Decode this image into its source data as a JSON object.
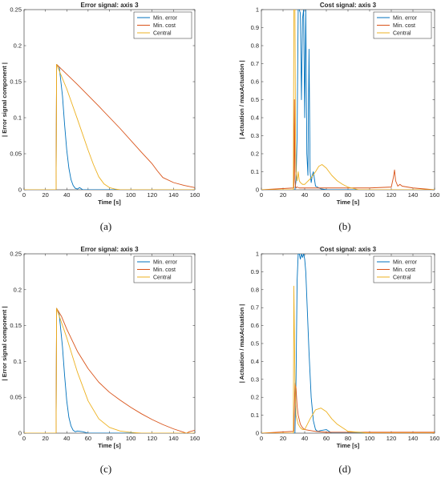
{
  "colors": {
    "min_error": "#0072BD",
    "min_cost": "#D95319",
    "central": "#EDB120"
  },
  "chart_data": [
    {
      "type": "line",
      "panel": "(a)",
      "title": "Error signal: axis 3",
      "xlabel": "Time [s]",
      "ylabel": "| Error signal component |",
      "xlim": [
        0,
        160
      ],
      "ylim": [
        0,
        0.25
      ],
      "xticks": [
        "0",
        "20",
        "40",
        "60",
        "80",
        "100",
        "120",
        "140",
        "160"
      ],
      "yticks": [
        "0",
        "0.05",
        "0.1",
        "0.15",
        "0.2",
        "0.25"
      ],
      "legend_position": "top-right",
      "series": [
        {
          "name": "Min. error",
          "x": [
            0,
            30,
            30.5,
            33,
            36,
            38,
            40,
            42,
            44,
            46,
            48,
            50,
            52,
            55,
            60,
            160
          ],
          "y": [
            0,
            0,
            0.174,
            0.17,
            0.13,
            0.09,
            0.055,
            0.03,
            0.014,
            0.006,
            0.002,
            0.001,
            0.003,
            0,
            0,
            0
          ]
        },
        {
          "name": "Min. cost",
          "x": [
            0,
            30,
            30.5,
            50,
            70,
            90,
            110,
            120,
            125,
            130,
            140,
            150,
            160
          ],
          "y": [
            0,
            0,
            0.174,
            0.146,
            0.116,
            0.085,
            0.052,
            0.036,
            0.026,
            0.017,
            0.01,
            0.006,
            0.003
          ]
        },
        {
          "name": "Central",
          "x": [
            0,
            30,
            30.5,
            40,
            50,
            60,
            65,
            70,
            75,
            80,
            85,
            90,
            160
          ],
          "y": [
            0,
            0,
            0.174,
            0.14,
            0.098,
            0.055,
            0.035,
            0.018,
            0.008,
            0.003,
            0.001,
            0,
            0
          ]
        }
      ]
    },
    {
      "type": "line",
      "panel": "(b)",
      "title": "Cost signal: axis 3",
      "xlabel": "Time [s]",
      "ylabel": "| Actuation / maxActuation |",
      "xlim": [
        0,
        160
      ],
      "ylim": [
        0,
        1
      ],
      "xticks": [
        "0",
        "20",
        "40",
        "60",
        "80",
        "100",
        "120",
        "140",
        "160"
      ],
      "yticks": [
        "0",
        "0.1",
        "0.2",
        "0.3",
        "0.4",
        "0.5",
        "0.6",
        "0.7",
        "0.8",
        "0.9",
        "1"
      ],
      "legend_position": "top-right",
      "series": [
        {
          "name": "Min. error",
          "x": [
            0,
            31,
            32,
            33,
            34,
            35,
            36,
            37,
            38,
            39,
            40,
            41,
            42,
            43,
            44,
            45,
            46,
            47,
            48,
            50,
            55,
            60,
            160
          ],
          "y": [
            0,
            0,
            0.05,
            0.3,
            1,
            1,
            0.98,
            0.5,
            0.95,
            1,
            0.4,
            1,
            0.2,
            0.08,
            0.78,
            0.1,
            0.04,
            0.08,
            0.1,
            0.02,
            0.005,
            0,
            0
          ]
        },
        {
          "name": "Min. cost",
          "x": [
            0,
            30,
            30.5,
            31,
            31.5,
            32,
            33,
            35,
            40,
            60,
            100,
            120,
            122,
            123,
            124,
            126,
            128,
            130,
            135,
            140,
            150,
            160
          ],
          "y": [
            0,
            0.01,
            0.5,
            0.06,
            0.02,
            0.01,
            0.015,
            0.01,
            0.01,
            0.01,
            0.01,
            0.015,
            0.07,
            0.11,
            0.05,
            0.02,
            0.03,
            0.02,
            0.015,
            0.01,
            0.005,
            0
          ]
        },
        {
          "name": "Central",
          "x": [
            0,
            29.5,
            30,
            31,
            31.5,
            32,
            33,
            34,
            35,
            36,
            38,
            40,
            45,
            50,
            53,
            56,
            60,
            65,
            70,
            75,
            80,
            90,
            160
          ],
          "y": [
            0,
            0,
            1,
            1,
            0.3,
            0.1,
            0.05,
            0.1,
            0.05,
            0.04,
            0.03,
            0.03,
            0.06,
            0.1,
            0.13,
            0.14,
            0.12,
            0.08,
            0.05,
            0.03,
            0.015,
            0,
            0
          ]
        }
      ]
    },
    {
      "type": "line",
      "panel": "(c)",
      "title": "Error signal: axis 3",
      "xlabel": "Time [s]",
      "ylabel": "| Error signal component |",
      "xlim": [
        0,
        160
      ],
      "ylim": [
        0,
        0.25
      ],
      "xticks": [
        "0",
        "20",
        "40",
        "60",
        "80",
        "100",
        "120",
        "140",
        "160"
      ],
      "yticks": [
        "0",
        "0.05",
        "0.1",
        "0.15",
        "0.2",
        "0.25"
      ],
      "legend_position": "top-right",
      "series": [
        {
          "name": "Min. error",
          "x": [
            0,
            30,
            30.5,
            33,
            36,
            38,
            40,
            42,
            44,
            46,
            48,
            50,
            55,
            60,
            160
          ],
          "y": [
            0,
            0,
            0.174,
            0.165,
            0.12,
            0.08,
            0.045,
            0.022,
            0.01,
            0.004,
            0.002,
            0.003,
            0.002,
            0,
            0
          ]
        },
        {
          "name": "Min. cost",
          "x": [
            0,
            30,
            30.5,
            35,
            40,
            50,
            60,
            70,
            80,
            90,
            100,
            110,
            120,
            130,
            140,
            150,
            152,
            155,
            160
          ],
          "y": [
            0,
            0,
            0.174,
            0.163,
            0.145,
            0.114,
            0.09,
            0.071,
            0.057,
            0.046,
            0.036,
            0.027,
            0.019,
            0.012,
            0.006,
            0.001,
            0,
            0.002,
            0.004
          ]
        },
        {
          "name": "Central",
          "x": [
            0,
            30,
            30.5,
            40,
            50,
            60,
            70,
            80,
            90,
            100,
            110,
            160
          ],
          "y": [
            0,
            0,
            0.174,
            0.133,
            0.085,
            0.045,
            0.02,
            0.008,
            0.003,
            0.001,
            0,
            0
          ]
        }
      ]
    },
    {
      "type": "line",
      "panel": "(d)",
      "title": "Cost signal: axis 3",
      "xlabel": "Time [s]",
      "ylabel": "| Actuation / maxActuation |",
      "xlim": [
        0,
        160
      ],
      "ylim": [
        0,
        1
      ],
      "xticks": [
        "0",
        "20",
        "40",
        "60",
        "80",
        "100",
        "120",
        "140",
        "160"
      ],
      "yticks": [
        "0",
        "0.1",
        "0.2",
        "0.3",
        "0.4",
        "0.5",
        "0.6",
        "0.7",
        "0.8",
        "0.9",
        "1"
      ],
      "legend_position": "top-right",
      "series": [
        {
          "name": "Min. error",
          "x": [
            0,
            31,
            32,
            33,
            34,
            35,
            36,
            37,
            38,
            39,
            40,
            41,
            42,
            44,
            46,
            48,
            50,
            52,
            55,
            60,
            65,
            160
          ],
          "y": [
            0,
            0,
            0.3,
            0.85,
            1,
            1,
            0.97,
            1,
            0.98,
            1,
            0.97,
            0.9,
            0.75,
            0.45,
            0.2,
            0.07,
            0.02,
            0.01,
            0.015,
            0.02,
            0,
            0
          ]
        },
        {
          "name": "Min. cost",
          "x": [
            0,
            30,
            31,
            32,
            33,
            34,
            36,
            38,
            40,
            45,
            50,
            60,
            80,
            100,
            120,
            140,
            160
          ],
          "y": [
            0,
            0.01,
            0.28,
            0.25,
            0.15,
            0.1,
            0.05,
            0.03,
            0.02,
            0.015,
            0.01,
            0.005,
            0.005,
            0.005,
            0.005,
            0.005,
            0.005
          ]
        },
        {
          "name": "Central",
          "x": [
            0,
            29.5,
            30,
            31,
            32,
            34,
            36,
            38,
            40,
            45,
            50,
            55,
            60,
            65,
            70,
            75,
            80,
            90,
            100,
            160
          ],
          "y": [
            0,
            0,
            0.82,
            0.3,
            0.1,
            0.05,
            0.03,
            0.02,
            0.02,
            0.08,
            0.13,
            0.14,
            0.12,
            0.08,
            0.05,
            0.03,
            0.01,
            0.005,
            0,
            0
          ]
        }
      ]
    }
  ]
}
